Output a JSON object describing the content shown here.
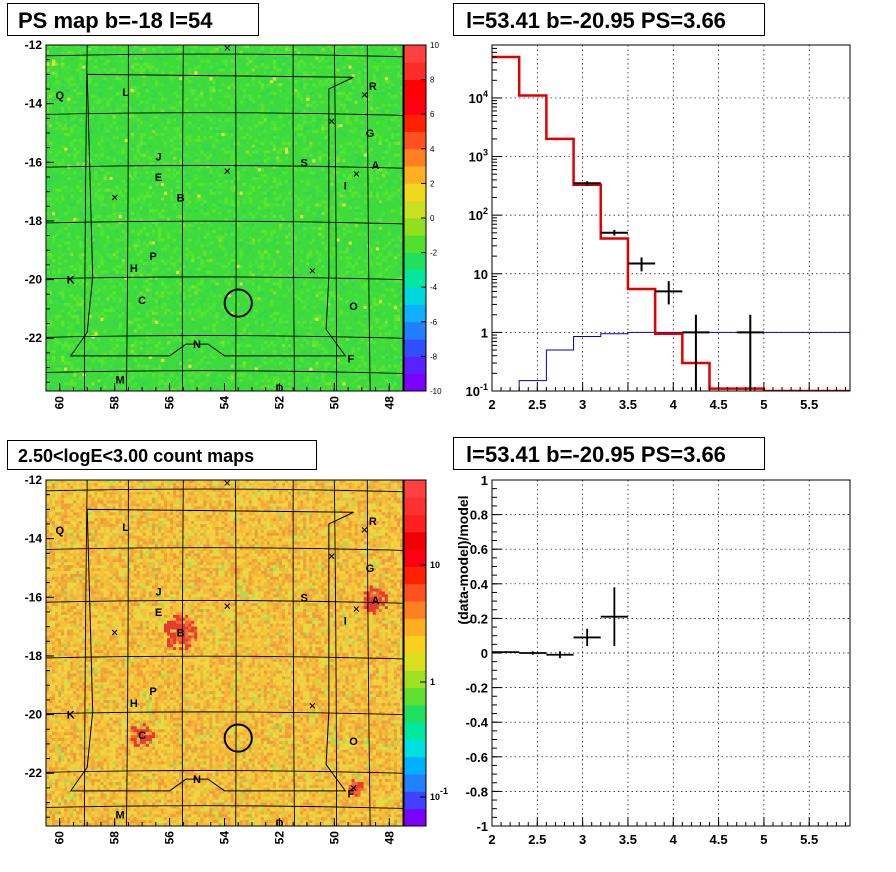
{
  "panels": {
    "tl_title": "PS map b=-18 l=54",
    "tr_title": "l=53.41 b=-20.95 PS=3.66",
    "bl_title": "2.50<logE<3.00 count maps",
    "br_title": "l=53.41 b=-20.95 PS=3.66"
  },
  "colors": {
    "model": "#e00000",
    "data": "#000000",
    "exposure": "#0000c8",
    "ps_map_bg": "#3ddc3a",
    "count_map_bg": "#f4c83c"
  },
  "chart_data": [
    {
      "type": "heatmap",
      "name": "ps-map",
      "x_ticks": [
        "60",
        "58",
        "56",
        "54",
        "52",
        "50",
        "48"
      ],
      "y_ticks": [
        "-12",
        "-14",
        "-16",
        "-18",
        "-20",
        "-22"
      ],
      "xlim": [
        60.5,
        47.5
      ],
      "ylim": [
        -23.8,
        -12
      ],
      "colorbar_ticks": [
        "10",
        "8",
        "6",
        "4",
        "2",
        "0",
        "-2",
        "-4",
        "-6",
        "-8",
        "-10"
      ],
      "colorbar_range": [
        -10,
        10
      ],
      "source_labels": [
        {
          "t": "Q",
          "l": 60.0,
          "b": -13.7
        },
        {
          "t": "L",
          "l": 57.6,
          "b": -13.6
        },
        {
          "t": "R",
          "l": 48.6,
          "b": -13.4
        },
        {
          "t": "G",
          "l": 48.7,
          "b": -15.0
        },
        {
          "t": "J",
          "l": 56.4,
          "b": -15.8
        },
        {
          "t": "S",
          "l": 51.1,
          "b": -16.0
        },
        {
          "t": "A",
          "l": 48.5,
          "b": -16.1
        },
        {
          "t": "E",
          "l": 56.4,
          "b": -16.5
        },
        {
          "t": "I",
          "l": 49.6,
          "b": -16.8
        },
        {
          "t": "B",
          "l": 55.6,
          "b": -17.2
        },
        {
          "t": "P",
          "l": 56.6,
          "b": -19.2
        },
        {
          "t": "H",
          "l": 57.3,
          "b": -19.6
        },
        {
          "t": "K",
          "l": 59.6,
          "b": -20.0
        },
        {
          "t": "C",
          "l": 57.0,
          "b": -20.7
        },
        {
          "t": "O",
          "l": 49.3,
          "b": -20.9
        },
        {
          "t": "N",
          "l": 55.0,
          "b": -22.2
        },
        {
          "t": "F",
          "l": 49.4,
          "b": -22.7
        },
        {
          "t": "M",
          "l": 57.8,
          "b": -23.4
        },
        {
          "t": "D",
          "l": 52.0,
          "b": -23.7
        }
      ],
      "crosses": [
        {
          "l": 53.9,
          "b": -12.1
        },
        {
          "l": 48.9,
          "b": -13.7
        },
        {
          "l": 50.1,
          "b": -14.6
        },
        {
          "l": 53.9,
          "b": -16.3
        },
        {
          "l": 49.2,
          "b": -16.4
        },
        {
          "l": 58.0,
          "b": -17.2
        },
        {
          "l": 50.8,
          "b": -19.7
        }
      ],
      "circle": {
        "l": 53.5,
        "b": -20.8,
        "r_deg": 0.45
      }
    },
    {
      "type": "line",
      "name": "spectrum",
      "xlim": [
        2,
        5.95
      ],
      "ylim": [
        0.1,
        80000
      ],
      "yscale": "log",
      "x_ticks": [
        "2",
        "2.5",
        "3",
        "3.5",
        "4",
        "4.5",
        "5",
        "5.5"
      ],
      "y_ticks": [
        "10^{-1}",
        "1",
        "10",
        "10^{2}",
        "10^{3}",
        "10^{4}"
      ],
      "grid": true,
      "series": [
        {
          "style": "step",
          "bin_edges": [
            2.0,
            2.3,
            2.6,
            2.9,
            3.2,
            3.5,
            3.8,
            4.1,
            4.4,
            4.7,
            5.0,
            5.3,
            5.6,
            5.95
          ],
          "values": [
            50000,
            11000,
            2000,
            330,
            40,
            5.5,
            0.95,
            0.3,
            0.11,
            0.11,
            0.1,
            0.1,
            0.1
          ]
        },
        {
          "style": "step",
          "bin_edges": [
            2.0,
            2.3,
            2.6,
            2.9,
            3.2,
            3.5,
            3.8,
            4.1,
            4.4,
            4.7,
            5.0,
            5.3,
            5.6,
            5.95
          ],
          "values": [
            0.06,
            0.15,
            0.5,
            0.85,
            0.95,
            1.0,
            1.0,
            1.0,
            1.0,
            1.0,
            1.0,
            1.0,
            1.0
          ]
        },
        {
          "style": "errorbar",
          "points": [
            {
              "x": 3.05,
              "y": 350,
              "xerr": 0.15,
              "ylo": 320,
              "yhi": 380
            },
            {
              "x": 3.35,
              "y": 50,
              "xerr": 0.15,
              "ylo": 45,
              "yhi": 56
            },
            {
              "x": 3.65,
              "y": 15,
              "xerr": 0.15,
              "ylo": 11,
              "yhi": 19
            },
            {
              "x": 3.95,
              "y": 5,
              "xerr": 0.15,
              "ylo": 3,
              "yhi": 7.5
            },
            {
              "x": 4.25,
              "y": 1,
              "xerr": 0.15,
              "ylo": 0.1,
              "yhi": 2
            },
            {
              "x": 4.85,
              "y": 1,
              "xerr": 0.15,
              "ylo": 0.1,
              "yhi": 2
            }
          ]
        }
      ]
    },
    {
      "type": "heatmap",
      "name": "count-map",
      "x_ticks": [
        "60",
        "58",
        "56",
        "54",
        "52",
        "50",
        "48"
      ],
      "y_ticks": [
        "-12",
        "-14",
        "-16",
        "-18",
        "-20",
        "-22"
      ],
      "xlim": [
        60.5,
        47.5
      ],
      "ylim": [
        -23.8,
        -12
      ],
      "colorbar_ticks": [
        "10",
        "1",
        "10^{-1}"
      ],
      "colorbar_scale": "log",
      "hotspots": [
        {
          "l": 55.6,
          "b": -17.2,
          "r": 1.0
        },
        {
          "l": 48.5,
          "b": -16.1,
          "r": 0.8
        },
        {
          "l": 57.0,
          "b": -20.7,
          "r": 0.7
        },
        {
          "l": 49.2,
          "b": -22.5,
          "r": 0.5
        }
      ],
      "source_labels": [
        {
          "t": "Q",
          "l": 60.0,
          "b": -13.7
        },
        {
          "t": "L",
          "l": 57.6,
          "b": -13.6
        },
        {
          "t": "R",
          "l": 48.6,
          "b": -13.4
        },
        {
          "t": "G",
          "l": 48.7,
          "b": -15.0
        },
        {
          "t": "J",
          "l": 56.4,
          "b": -15.8
        },
        {
          "t": "S",
          "l": 51.1,
          "b": -16.0
        },
        {
          "t": "A",
          "l": 48.5,
          "b": -16.1
        },
        {
          "t": "E",
          "l": 56.4,
          "b": -16.5
        },
        {
          "t": "I",
          "l": 49.6,
          "b": -16.8
        },
        {
          "t": "B",
          "l": 55.6,
          "b": -17.2
        },
        {
          "t": "P",
          "l": 56.6,
          "b": -19.2
        },
        {
          "t": "H",
          "l": 57.3,
          "b": -19.6
        },
        {
          "t": "K",
          "l": 59.6,
          "b": -20.0
        },
        {
          "t": "C",
          "l": 57.0,
          "b": -20.7
        },
        {
          "t": "O",
          "l": 49.3,
          "b": -20.9
        },
        {
          "t": "N",
          "l": 55.0,
          "b": -22.2
        },
        {
          "t": "F",
          "l": 49.4,
          "b": -22.7
        },
        {
          "t": "M",
          "l": 57.8,
          "b": -23.4
        },
        {
          "t": "D",
          "l": 52.0,
          "b": -23.7
        }
      ],
      "crosses": [
        {
          "l": 53.9,
          "b": -12.1
        },
        {
          "l": 48.9,
          "b": -13.7
        },
        {
          "l": 50.1,
          "b": -14.6
        },
        {
          "l": 53.9,
          "b": -16.3
        },
        {
          "l": 49.2,
          "b": -16.4
        },
        {
          "l": 58.0,
          "b": -17.2
        },
        {
          "l": 50.8,
          "b": -19.7
        },
        {
          "l": 49.3,
          "b": -22.5
        }
      ],
      "circle": {
        "l": 53.5,
        "b": -20.8,
        "r_deg": 0.45
      }
    },
    {
      "type": "scatter",
      "name": "residuals",
      "xlim": [
        2,
        5.95
      ],
      "ylim": [
        -1,
        1
      ],
      "ylabel": "(data-model)/model",
      "x_ticks": [
        "2",
        "2.5",
        "3",
        "3.5",
        "4",
        "4.5",
        "5",
        "5.5"
      ],
      "y_ticks": [
        "1",
        "0.8",
        "0.6",
        "0.4",
        "0.2",
        "0",
        "-0.2",
        "-0.4",
        "-0.6",
        "-0.8",
        "-1"
      ],
      "grid": true,
      "points": [
        {
          "x": 2.15,
          "y": 0.005,
          "xerr": 0.15,
          "yerr": 0.005
        },
        {
          "x": 2.45,
          "y": 0.0,
          "xerr": 0.15,
          "yerr": 0.01
        },
        {
          "x": 2.75,
          "y": -0.01,
          "xerr": 0.15,
          "yerr": 0.02
        },
        {
          "x": 3.05,
          "y": 0.09,
          "xerr": 0.15,
          "yerr": 0.05
        },
        {
          "x": 3.35,
          "y": 0.21,
          "xerr": 0.15,
          "yerr": 0.17
        }
      ]
    }
  ]
}
